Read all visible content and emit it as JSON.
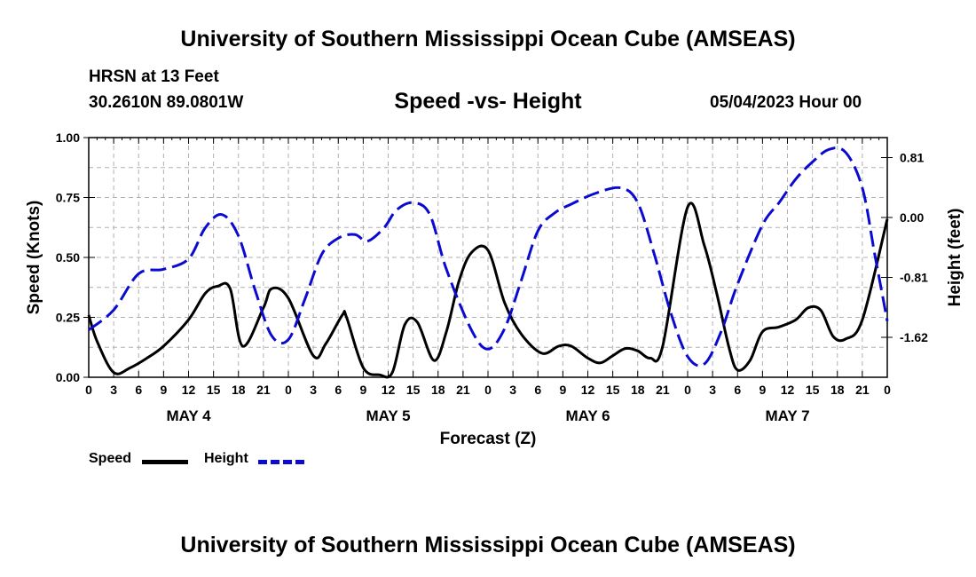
{
  "header": {
    "title": "University of Southern Mississippi Ocean Cube (AMSEAS)",
    "station": "HRSN at 13 Feet",
    "coordinates": "30.2610N  89.0801W",
    "subtitle": "Speed -vs- Height",
    "date": "05/04/2023 Hour 00"
  },
  "footer": {
    "title": "University of Southern Mississippi Ocean Cube (AMSEAS)"
  },
  "legend": {
    "speed_label": "Speed",
    "height_label": "Height"
  },
  "colors": {
    "speed": "#000000",
    "height": "#0a0ad0",
    "grid": "#b0b0b0"
  },
  "chart_data": {
    "type": "line",
    "xlabel": "Forecast (Z)",
    "ylabel": "Speed (Knots)",
    "y2label": "Height (feet)",
    "x_range_hours": [
      0,
      96
    ],
    "ylim": [
      0,
      1
    ],
    "y2lim": [
      -2.16,
      1.08
    ],
    "yticks": [
      "0.00",
      "0.25",
      "0.50",
      "0.75",
      "1.00"
    ],
    "y2ticks": [
      "0.81",
      "0.00",
      "-0.81",
      "-1.62"
    ],
    "xtick_labels": [
      "0",
      "3",
      "6",
      "9",
      "12",
      "15",
      "18",
      "21",
      "0",
      "3",
      "6",
      "9",
      "12",
      "15",
      "18",
      "21",
      "0",
      "3",
      "6",
      "9",
      "12",
      "15",
      "18",
      "21",
      "0",
      "3",
      "6",
      "9",
      "12",
      "15",
      "18",
      "21",
      "0"
    ],
    "day_labels": [
      "MAY 4",
      "MAY 5",
      "MAY 6",
      "MAY 7"
    ],
    "grid": true,
    "series": [
      {
        "name": "Speed",
        "axis": "left",
        "style": "solid",
        "x": [
          0,
          1,
          3,
          5,
          7,
          9,
          12,
          14,
          15.5,
          17,
          18.5,
          21,
          22,
          24,
          27,
          28.5,
          30.5,
          31,
          33,
          35,
          36.5,
          38,
          39.5,
          41.5,
          43,
          44.5,
          46,
          48,
          50,
          52,
          54.5,
          56.5,
          58,
          60,
          61.5,
          63,
          64.5,
          66,
          67.5,
          69,
          72,
          74,
          75.5,
          77,
          78,
          79.5,
          81,
          83,
          85,
          86.5,
          88,
          89.5,
          91,
          93,
          96
        ],
        "y": [
          0.26,
          0.15,
          0.02,
          0.04,
          0.08,
          0.13,
          0.24,
          0.35,
          0.38,
          0.37,
          0.13,
          0.29,
          0.37,
          0.33,
          0.09,
          0.14,
          0.26,
          0.25,
          0.04,
          0.01,
          0.02,
          0.22,
          0.23,
          0.07,
          0.19,
          0.4,
          0.52,
          0.53,
          0.31,
          0.18,
          0.1,
          0.13,
          0.13,
          0.08,
          0.06,
          0.09,
          0.12,
          0.11,
          0.08,
          0.13,
          0.71,
          0.55,
          0.35,
          0.12,
          0.03,
          0.07,
          0.19,
          0.21,
          0.24,
          0.29,
          0.28,
          0.17,
          0.16,
          0.24,
          0.66
        ]
      },
      {
        "name": "Height",
        "axis": "right",
        "style": "dashed",
        "x": [
          0,
          3,
          6,
          9,
          12,
          14,
          16,
          18,
          20,
          22,
          24,
          26,
          28,
          30,
          32,
          33.5,
          35.5,
          37,
          39,
          41,
          43,
          46,
          48,
          50,
          52,
          54,
          56,
          58,
          61,
          64,
          66,
          68,
          70,
          72,
          74,
          76,
          78,
          81,
          83,
          85,
          87,
          89,
          91,
          93,
          94.5,
          96
        ],
        "y": [
          -1.52,
          -1.25,
          -0.76,
          -0.7,
          -0.56,
          -0.14,
          0.04,
          -0.25,
          -0.98,
          -1.6,
          -1.65,
          -1.1,
          -0.5,
          -0.28,
          -0.23,
          -0.32,
          -0.14,
          0.1,
          0.2,
          0.04,
          -0.7,
          -1.52,
          -1.78,
          -1.5,
          -0.85,
          -0.18,
          0.06,
          0.18,
          0.33,
          0.4,
          0.2,
          -0.5,
          -1.3,
          -1.88,
          -1.98,
          -1.55,
          -0.9,
          -0.1,
          0.2,
          0.52,
          0.75,
          0.92,
          0.88,
          0.4,
          -0.5,
          -1.4
        ]
      }
    ]
  }
}
